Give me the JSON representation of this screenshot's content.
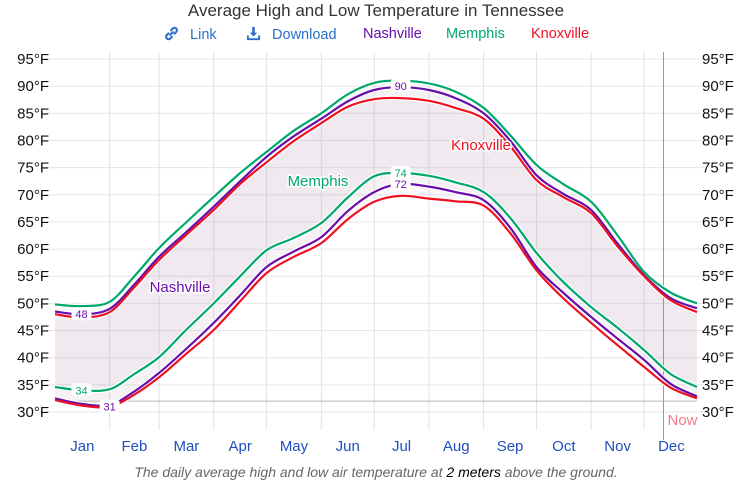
{
  "title": "Average High and Low Temperature in Tennessee",
  "toolbar": {
    "link_label": "Link",
    "link_icon": "link-icon",
    "download_label": "Download",
    "download_icon": "download-icon"
  },
  "caption": {
    "before": "The daily average high and low air temperature at ",
    "emph": "2 meters",
    "after": " above the ground."
  },
  "now_label": "Now",
  "chart_data": {
    "type": "line",
    "title": "Average High and Low Temperature in Tennessee",
    "xlabel": "",
    "ylabel": "",
    "x_unit": "day of year",
    "xlim": [
      1,
      365
    ],
    "ylim": [
      28,
      96
    ],
    "y_ticks": [
      30,
      35,
      40,
      45,
      50,
      55,
      60,
      65,
      70,
      75,
      80,
      85,
      90,
      95
    ],
    "y_tick_labels": [
      "30°F",
      "35°F",
      "40°F",
      "45°F",
      "50°F",
      "55°F",
      "60°F",
      "65°F",
      "70°F",
      "75°F",
      "80°F",
      "85°F",
      "90°F",
      "95°F"
    ],
    "x_month_starts": [
      1,
      32,
      60,
      91,
      121,
      152,
      182,
      213,
      244,
      274,
      305,
      335
    ],
    "x_tick_labels": [
      "Jan",
      "Feb",
      "Mar",
      "Apr",
      "May",
      "Jun",
      "Jul",
      "Aug",
      "Sep",
      "Oct",
      "Nov",
      "Dec"
    ],
    "grid": true,
    "freezing_line": 32,
    "now_day": 346,
    "legend": [
      "Nashville",
      "Memphis",
      "Knoxville"
    ],
    "legend_position": "top-center",
    "x": [
      1,
      16,
      32,
      46,
      60,
      75,
      91,
      106,
      121,
      136,
      152,
      167,
      182,
      197,
      213,
      228,
      244,
      259,
      274,
      289,
      305,
      320,
      335,
      350,
      365
    ],
    "series": [
      {
        "name": "Nashville",
        "color": "#6a0dad",
        "high": [
          48.5,
          48.0,
          49.0,
          53.5,
          58.6,
          63.0,
          67.8,
          72.5,
          77.0,
          80.7,
          84.0,
          87.2,
          89.3,
          89.8,
          89.3,
          87.8,
          85.0,
          80.0,
          73.6,
          70.2,
          67.2,
          61.0,
          55.2,
          51.0,
          49.1
        ],
        "low": [
          32.5,
          31.5,
          31.3,
          33.8,
          37.2,
          41.5,
          46.4,
          51.5,
          56.7,
          59.5,
          62.2,
          67.0,
          70.5,
          72.0,
          71.5,
          70.5,
          69.0,
          64.0,
          56.7,
          52.0,
          47.5,
          43.5,
          39.6,
          35.2,
          32.9
        ],
        "annotations": [
          {
            "label": "48",
            "day": 16,
            "value": 48.0,
            "kind": "min-high"
          },
          {
            "label": "31",
            "day": 32,
            "value": 31.0,
            "kind": "min-low"
          },
          {
            "label": "90",
            "day": 197,
            "value": 90.0,
            "kind": "max-high"
          },
          {
            "label": "72",
            "day": 197,
            "value": 72.0,
            "kind": "max-low"
          }
        ],
        "line_label": "Nashville"
      },
      {
        "name": "Memphis",
        "color": "#00a86b",
        "high": [
          49.8,
          49.5,
          50.3,
          55.0,
          60.2,
          64.8,
          69.6,
          74.0,
          77.9,
          81.7,
          85.0,
          88.5,
          90.6,
          91.0,
          90.5,
          89.0,
          86.0,
          81.0,
          75.5,
          72.0,
          68.7,
          62.5,
          55.8,
          52.0,
          50.0
        ],
        "low": [
          34.6,
          34.0,
          34.2,
          37.0,
          40.1,
          45.0,
          50.0,
          55.0,
          59.8,
          62.0,
          64.8,
          69.5,
          73.4,
          74.0,
          73.5,
          72.3,
          70.5,
          65.8,
          59.3,
          54.0,
          49.3,
          45.5,
          41.4,
          37.0,
          34.6
        ],
        "annotations": [
          {
            "label": "34",
            "day": 16,
            "value": 34.0,
            "kind": "min-low"
          },
          {
            "label": "74",
            "day": 197,
            "value": 74.0,
            "kind": "max-low"
          }
        ],
        "line_label": "Memphis"
      },
      {
        "name": "Knoxville",
        "color": "#ee1122",
        "high": [
          48.0,
          47.4,
          48.4,
          53.0,
          58.0,
          62.5,
          67.2,
          72.0,
          76.0,
          79.8,
          83.2,
          86.2,
          87.6,
          87.8,
          87.3,
          86.0,
          84.0,
          79.0,
          72.7,
          69.6,
          66.6,
          60.5,
          55.0,
          50.6,
          48.4
        ],
        "low": [
          32.2,
          31.2,
          31.0,
          33.2,
          36.4,
          40.6,
          45.1,
          50.4,
          55.6,
          58.5,
          61.1,
          65.5,
          68.7,
          69.8,
          69.3,
          68.8,
          68.0,
          63.0,
          56.1,
          51.0,
          46.4,
          42.3,
          38.3,
          34.5,
          32.5
        ],
        "line_label": "Knoxville"
      }
    ]
  }
}
